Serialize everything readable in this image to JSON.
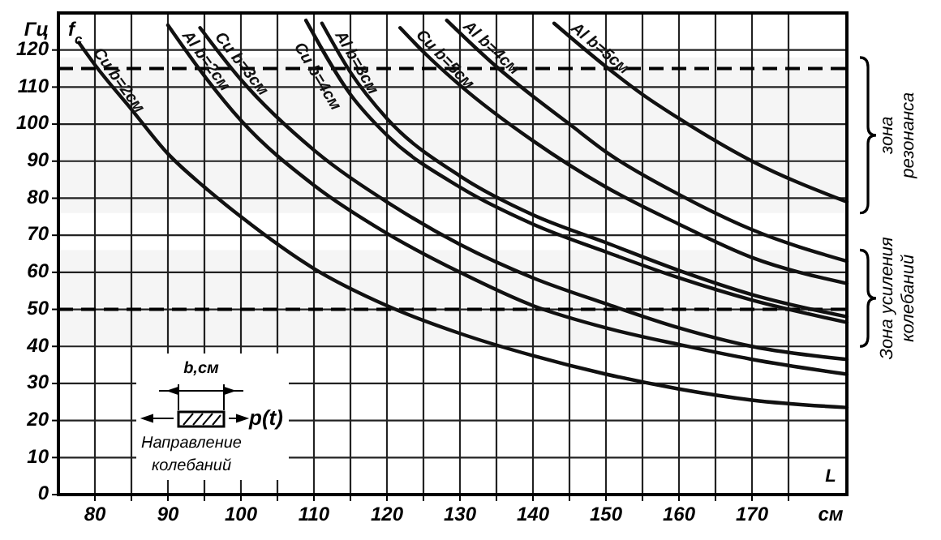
{
  "chart_data": {
    "type": "line",
    "xlabel": "см",
    "ylabel": "Гц",
    "xlim": [
      75,
      183
    ],
    "ylim": [
      0,
      130
    ],
    "xticks": [
      80,
      {
        "value": 85,
        "label": null
      },
      90,
      {
        "value": 95,
        "label": null
      },
      100,
      {
        "value": 105,
        "label": null
      },
      110,
      {
        "value": 115,
        "label": null
      },
      120,
      {
        "value": 125,
        "label": null
      },
      130,
      {
        "value": 135,
        "label": null
      },
      140,
      {
        "value": 145,
        "label": null
      },
      150,
      {
        "value": 155,
        "label": null
      },
      160,
      {
        "value": 165,
        "label": null
      },
      170,
      {
        "value": 175,
        "label": null
      }
    ],
    "yticks": [
      0,
      10,
      20,
      30,
      40,
      50,
      60,
      70,
      80,
      90,
      100,
      110,
      120
    ],
    "grid": true,
    "marker": "none",
    "line_style": "solid",
    "series": [
      {
        "name": "Cu b=2см",
        "color": "#111111",
        "x": [
          77.8,
          80,
          85,
          90,
          95,
          100,
          110,
          120,
          130,
          140,
          150,
          160,
          170,
          183
        ],
        "values": [
          122,
          116,
          104,
          92,
          83,
          75,
          61,
          51,
          43.5,
          37.5,
          32.5,
          28.5,
          25.5,
          23.5
        ]
      },
      {
        "name": "Al b=2см",
        "color": "#111111",
        "x": [
          90,
          95,
          100,
          110,
          120,
          130,
          140,
          150,
          160,
          170,
          183
        ],
        "values": [
          126.7,
          113,
          101,
          83.5,
          70.5,
          60,
          51,
          45,
          40.5,
          36.5,
          32.5
        ]
      },
      {
        "name": "Cu b=3см",
        "color": "#111111",
        "x": [
          94.4,
          100,
          110,
          120,
          130,
          140,
          150,
          160,
          170,
          183
        ],
        "values": [
          126,
          112,
          93,
          79,
          67.5,
          58.5,
          51.5,
          45,
          40,
          36.5
        ]
      },
      {
        "name": "Cu b=4см",
        "color": "#111111",
        "x": [
          108.9,
          115,
          120,
          130,
          140,
          150,
          160,
          170,
          183
        ],
        "values": [
          128,
          108,
          97,
          83,
          73,
          65.5,
          58.5,
          52.5,
          46.5
        ]
      },
      {
        "name": "Al b=3см",
        "color": "#111111",
        "x": [
          111.1,
          115,
          120,
          130,
          140,
          150,
          160,
          170,
          183
        ],
        "values": [
          127.2,
          114,
          101.5,
          86,
          75.5,
          68,
          60.5,
          54,
          48
        ]
      },
      {
        "name": "Cu b=5см",
        "color": "#111111",
        "x": [
          121.8,
          125,
          130,
          140,
          150,
          160,
          170,
          183
        ],
        "values": [
          126,
          119.5,
          110.5,
          95.5,
          83,
          73,
          64,
          57
        ]
      },
      {
        "name": "Al b=4см",
        "color": "#111111",
        "x": [
          128.2,
          135,
          140,
          145,
          150,
          160,
          170,
          183
        ],
        "values": [
          128,
          115.5,
          107.5,
          100,
          92.5,
          81,
          71.5,
          63
        ]
      },
      {
        "name": "Al b=5см",
        "color": "#111111",
        "x": [
          142.9,
          150,
          155,
          160,
          170,
          183
        ],
        "values": [
          127.2,
          115.5,
          108,
          101.5,
          90,
          79
        ]
      }
    ],
    "ref_lines": [
      {
        "axis": "y",
        "value": 115,
        "line_style": "dashed"
      },
      {
        "axis": "y",
        "value": 50,
        "line_style": "dashed"
      }
    ],
    "bands": [
      {
        "axis": "y",
        "from": 76,
        "to": 118,
        "label": "зона резонанса"
      },
      {
        "axis": "y",
        "from": 40,
        "to": 66,
        "label": "Зона усиления колебаний"
      }
    ],
    "annotations": [
      "f$_{c}$",
      "L",
      "b,см",
      "p(t)",
      "Направление колебаний"
    ]
  }
}
